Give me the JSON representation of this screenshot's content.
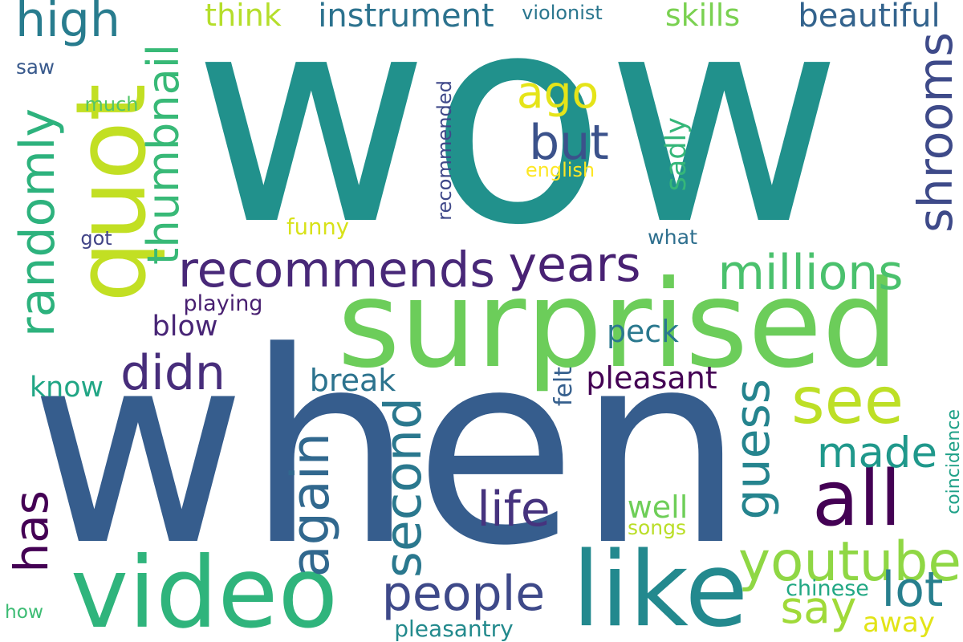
{
  "wordcloud": {
    "background": "#ffffff",
    "words": [
      {
        "text": "wow",
        "color": "#21918c",
        "orientation": "horizontal"
      },
      {
        "text": "when",
        "color": "#365d8d",
        "orientation": "horizontal"
      },
      {
        "text": "surprised",
        "color": "#6ccd5a",
        "orientation": "horizontal"
      },
      {
        "text": "quot",
        "color": "#c2df23",
        "orientation": "vertical"
      },
      {
        "text": "video",
        "color": "#2fb47c",
        "orientation": "horizontal"
      },
      {
        "text": "like",
        "color": "#23898e",
        "orientation": "horizontal"
      },
      {
        "text": "recommends",
        "color": "#482878",
        "orientation": "horizontal"
      },
      {
        "text": "all",
        "color": "#440154",
        "orientation": "horizontal"
      },
      {
        "text": "see",
        "color": "#bddf26",
        "orientation": "horizontal"
      },
      {
        "text": "youtube",
        "color": "#8fd744",
        "orientation": "horizontal"
      },
      {
        "text": "years",
        "color": "#482173",
        "orientation": "horizontal"
      },
      {
        "text": "millions",
        "color": "#4ac16d",
        "orientation": "horizontal"
      },
      {
        "text": "high",
        "color": "#287c8e",
        "orientation": "horizontal"
      },
      {
        "text": "but",
        "color": "#3b528b",
        "orientation": "horizontal"
      },
      {
        "text": "ago",
        "color": "#e5e419",
        "orientation": "horizontal"
      },
      {
        "text": "thumbnail",
        "color": "#38b977",
        "orientation": "vertical"
      },
      {
        "text": "randomly",
        "color": "#2db27d",
        "orientation": "vertical"
      },
      {
        "text": "shrooms",
        "color": "#3e4a89",
        "orientation": "vertical"
      },
      {
        "text": "didn",
        "color": "#472d7b",
        "orientation": "horizontal"
      },
      {
        "text": "second",
        "color": "#2a788e",
        "orientation": "vertical"
      },
      {
        "text": "again",
        "color": "#31688e",
        "orientation": "vertical"
      },
      {
        "text": "guess",
        "color": "#25848e",
        "orientation": "vertical"
      },
      {
        "text": "made",
        "color": "#1f988b",
        "orientation": "horizontal"
      },
      {
        "text": "people",
        "color": "#3e4989",
        "orientation": "horizontal"
      },
      {
        "text": "life",
        "color": "#46337e",
        "orientation": "horizontal"
      },
      {
        "text": "lot",
        "color": "#277f8e",
        "orientation": "horizontal"
      },
      {
        "text": "say",
        "color": "#a0da39",
        "orientation": "horizontal"
      },
      {
        "text": "has",
        "color": "#440154",
        "orientation": "vertical"
      },
      {
        "text": "beautiful",
        "color": "#33638d",
        "orientation": "horizontal"
      },
      {
        "text": "instrument",
        "color": "#2c728e",
        "orientation": "horizontal"
      },
      {
        "text": "skills",
        "color": "#7ad151",
        "orientation": "horizontal"
      },
      {
        "text": "think",
        "color": "#b5de2b",
        "orientation": "horizontal"
      },
      {
        "text": "violonist",
        "color": "#2a768e",
        "orientation": "horizontal"
      },
      {
        "text": "saw",
        "color": "#38598c",
        "orientation": "horizontal"
      },
      {
        "text": "much",
        "color": "#52c569",
        "orientation": "horizontal"
      },
      {
        "text": "english",
        "color": "#fde725",
        "orientation": "horizontal"
      },
      {
        "text": "recommended",
        "color": "#3f4889",
        "orientation": "vertical"
      },
      {
        "text": "sadly",
        "color": "#35b779",
        "orientation": "vertical"
      },
      {
        "text": "funny",
        "color": "#d8e219",
        "orientation": "horizontal"
      },
      {
        "text": "got",
        "color": "#414487",
        "orientation": "horizontal"
      },
      {
        "text": "what",
        "color": "#2e6f8e",
        "orientation": "horizontal"
      },
      {
        "text": "playing",
        "color": "#481f70",
        "orientation": "horizontal"
      },
      {
        "text": "blow",
        "color": "#482576",
        "orientation": "horizontal"
      },
      {
        "text": "peck",
        "color": "#2a788e",
        "orientation": "horizontal"
      },
      {
        "text": "know",
        "color": "#21a685",
        "orientation": "horizontal"
      },
      {
        "text": "break",
        "color": "#2c738e",
        "orientation": "horizontal"
      },
      {
        "text": "pleasant",
        "color": "#440154",
        "orientation": "horizontal"
      },
      {
        "text": "felt",
        "color": "#355f8d",
        "orientation": "vertical"
      },
      {
        "text": "coincidence",
        "color": "#1fa188",
        "orientation": "vertical"
      },
      {
        "text": "well",
        "color": "#6ece58",
        "orientation": "horizontal"
      },
      {
        "text": "songs",
        "color": "#bade28",
        "orientation": "horizontal"
      },
      {
        "text": "chinese",
        "color": "#22a884",
        "orientation": "horizontal"
      },
      {
        "text": "away",
        "color": "#e2e418",
        "orientation": "horizontal"
      },
      {
        "text": "how",
        "color": "#3dbc74",
        "orientation": "horizontal"
      },
      {
        "text": "pleasantry",
        "color": "#238a8d",
        "orientation": "horizontal"
      }
    ]
  }
}
